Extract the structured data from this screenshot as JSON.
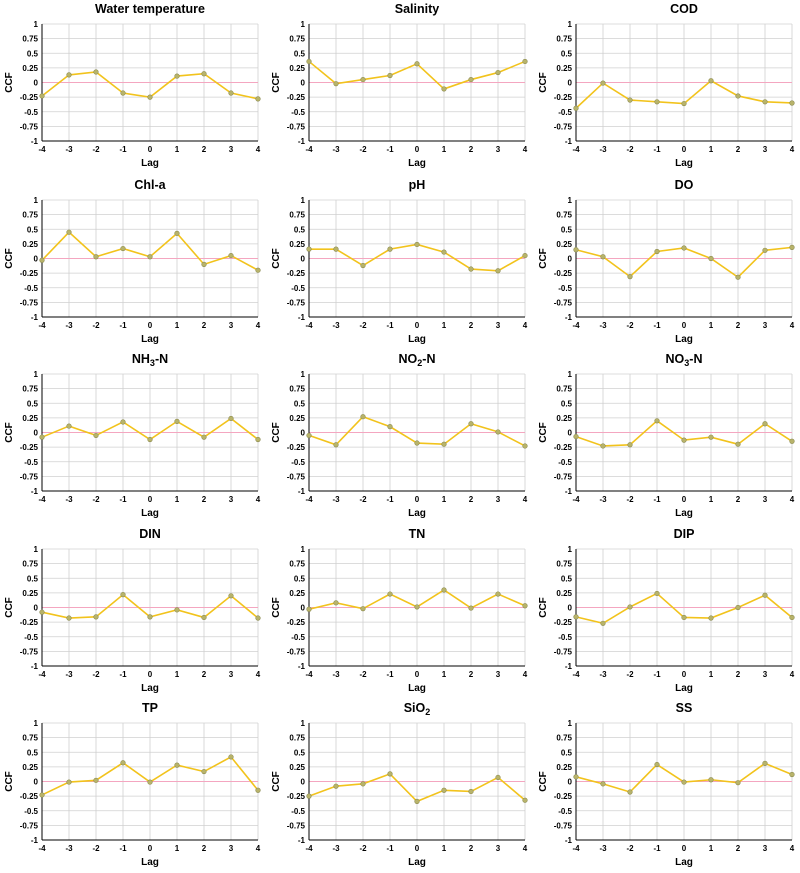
{
  "figure": {
    "colors": {
      "series": "#f2c31c",
      "marker_fill": "#b8b36a",
      "marker_edge": "#8a8a50",
      "zero_line": "#f4a6c0",
      "grid": "#d0d0d0",
      "axis": "#000000"
    }
  },
  "chart_data": [
    {
      "type": "line",
      "title": "Water temperature",
      "xlabel": "Lag",
      "ylabel": "CCF",
      "x": [
        -4,
        -3,
        -2,
        -1,
        0,
        1,
        2,
        3,
        4
      ],
      "xticks": [
        "-4",
        "-3",
        "-2",
        "-1",
        "0",
        "1",
        "2",
        "3",
        "4"
      ],
      "yticks": [
        "1",
        "0.75",
        "0.5",
        "0.25",
        "0",
        "-0.25",
        "-0.5",
        "-0.75",
        "-1"
      ],
      "ylim": [
        -1,
        1
      ],
      "values": [
        -0.23,
        0.13,
        0.18,
        -0.18,
        -0.25,
        0.11,
        0.15,
        -0.18,
        -0.28
      ]
    },
    {
      "type": "line",
      "title": "Salinity",
      "xlabel": "Lag",
      "ylabel": "CCF",
      "x": [
        -4,
        -3,
        -2,
        -1,
        0,
        1,
        2,
        3,
        4
      ],
      "xticks": [
        "-4",
        "-3",
        "-2",
        "-1",
        "0",
        "1",
        "2",
        "3",
        "4"
      ],
      "yticks": [
        "1",
        "0.75",
        "0.5",
        "0.25",
        "0",
        "-0.25",
        "-0.5",
        "-0.75",
        "-1"
      ],
      "ylim": [
        -1,
        1
      ],
      "values": [
        0.36,
        -0.02,
        0.05,
        0.12,
        0.32,
        -0.11,
        0.05,
        0.17,
        0.36
      ]
    },
    {
      "type": "line",
      "title": "COD",
      "xlabel": "Lag",
      "ylabel": "CCF",
      "x": [
        -4,
        -3,
        -2,
        -1,
        0,
        1,
        2,
        3,
        4
      ],
      "xticks": [
        "-4",
        "-3",
        "-2",
        "-1",
        "0",
        "1",
        "2",
        "3",
        "4"
      ],
      "yticks": [
        "1",
        "0.75",
        "0.5",
        "0.25",
        "0",
        "-0.25",
        "-0.5",
        "-0.75",
        "-1"
      ],
      "ylim": [
        -1,
        1
      ],
      "values": [
        -0.44,
        -0.01,
        -0.3,
        -0.33,
        -0.36,
        0.03,
        -0.23,
        -0.33,
        -0.35
      ]
    },
    {
      "type": "line",
      "title": "Chl-a",
      "xlabel": "Lag",
      "ylabel": "CCF",
      "x": [
        -4,
        -3,
        -2,
        -1,
        0,
        1,
        2,
        3,
        4
      ],
      "xticks": [
        "-4",
        "-3",
        "-2",
        "-1",
        "0",
        "1",
        "2",
        "3",
        "4"
      ],
      "yticks": [
        "1",
        "0.75",
        "0.5",
        "0.25",
        "0",
        "-0.25",
        "-0.5",
        "-0.75",
        "-1"
      ],
      "ylim": [
        -1,
        1
      ],
      "values": [
        -0.03,
        0.45,
        0.03,
        0.17,
        0.03,
        0.43,
        -0.1,
        0.05,
        -0.2
      ]
    },
    {
      "type": "line",
      "title": "pH",
      "xlabel": "Lag",
      "ylabel": "CCF",
      "x": [
        -4,
        -3,
        -2,
        -1,
        0,
        1,
        2,
        3,
        4
      ],
      "xticks": [
        "-4",
        "-3",
        "-2",
        "-1",
        "0",
        "1",
        "2",
        "3",
        "4"
      ],
      "yticks": [
        "1",
        "0.75",
        "0.5",
        "0.25",
        "0",
        "-0.25",
        "-0.5",
        "-0.75",
        "-1"
      ],
      "ylim": [
        -1,
        1
      ],
      "values": [
        0.16,
        0.16,
        -0.12,
        0.16,
        0.24,
        0.11,
        -0.18,
        -0.21,
        0.05
      ]
    },
    {
      "type": "line",
      "title": "DO",
      "xlabel": "Lag",
      "ylabel": "CCF",
      "x": [
        -4,
        -3,
        -2,
        -1,
        0,
        1,
        2,
        3,
        4
      ],
      "xticks": [
        "-4",
        "-3",
        "-2",
        "-1",
        "0",
        "1",
        "2",
        "3",
        "4"
      ],
      "yticks": [
        "1",
        "0.75",
        "0.5",
        "0.25",
        "0",
        "-0.25",
        "-0.5",
        "-0.75",
        "-1"
      ],
      "ylim": [
        -1,
        1
      ],
      "values": [
        0.15,
        0.03,
        -0.31,
        0.12,
        0.18,
        0.0,
        -0.32,
        0.14,
        0.19
      ]
    },
    {
      "type": "line",
      "title": "NH",
      "title_sub": "3",
      "title_suffix": "-N",
      "xlabel": "Lag",
      "ylabel": "CCF",
      "x": [
        -4,
        -3,
        -2,
        -1,
        0,
        1,
        2,
        3,
        4
      ],
      "xticks": [
        "-4",
        "-3",
        "-2",
        "-1",
        "0",
        "1",
        "2",
        "3",
        "4"
      ],
      "yticks": [
        "1",
        "0.75",
        "0.5",
        "0.25",
        "0",
        "-0.25",
        "-0.5",
        "-0.75",
        "-1"
      ],
      "ylim": [
        -1,
        1
      ],
      "values": [
        -0.08,
        0.11,
        -0.05,
        0.18,
        -0.12,
        0.19,
        -0.08,
        0.24,
        -0.12
      ]
    },
    {
      "type": "line",
      "title": "NO",
      "title_sub": "2",
      "title_suffix": "-N",
      "xlabel": "Lag",
      "ylabel": "CCF",
      "x": [
        -4,
        -3,
        -2,
        -1,
        0,
        1,
        2,
        3,
        4
      ],
      "xticks": [
        "-4",
        "-3",
        "-2",
        "-1",
        "0",
        "1",
        "2",
        "3",
        "4"
      ],
      "yticks": [
        "1",
        "0.75",
        "0.5",
        "0.25",
        "0",
        "-0.25",
        "-0.5",
        "-0.75",
        "-1"
      ],
      "ylim": [
        -1,
        1
      ],
      "values": [
        -0.05,
        -0.21,
        0.27,
        0.1,
        -0.18,
        -0.2,
        0.15,
        0.01,
        -0.23
      ]
    },
    {
      "type": "line",
      "title": "NO",
      "title_sub": "3",
      "title_suffix": "-N",
      "xlabel": "Lag",
      "ylabel": "CCF",
      "x": [
        -4,
        -3,
        -2,
        -1,
        0,
        1,
        2,
        3,
        4
      ],
      "xticks": [
        "-4",
        "-3",
        "-2",
        "-1",
        "0",
        "1",
        "2",
        "3",
        "4"
      ],
      "yticks": [
        "1",
        "0.75",
        "0.5",
        "0.25",
        "0",
        "-0.25",
        "-0.5",
        "-0.75",
        "-1"
      ],
      "ylim": [
        -1,
        1
      ],
      "values": [
        -0.07,
        -0.23,
        -0.21,
        0.2,
        -0.13,
        -0.08,
        -0.2,
        0.15,
        -0.15
      ]
    },
    {
      "type": "line",
      "title": "DIN",
      "xlabel": "Lag",
      "ylabel": "CCF",
      "x": [
        -4,
        -3,
        -2,
        -1,
        0,
        1,
        2,
        3,
        4
      ],
      "xticks": [
        "-4",
        "-3",
        "-2",
        "-1",
        "0",
        "1",
        "2",
        "3",
        "4"
      ],
      "yticks": [
        "1",
        "0.75",
        "0.5",
        "0.25",
        "0",
        "-0.25",
        "-0.5",
        "-0.75",
        "-1"
      ],
      "ylim": [
        -1,
        1
      ],
      "values": [
        -0.08,
        -0.18,
        -0.16,
        0.22,
        -0.16,
        -0.04,
        -0.17,
        0.2,
        -0.18
      ]
    },
    {
      "type": "line",
      "title": "TN",
      "xlabel": "Lag",
      "ylabel": "CCF",
      "x": [
        -4,
        -3,
        -2,
        -1,
        0,
        1,
        2,
        3,
        4
      ],
      "xticks": [
        "-4",
        "-3",
        "-2",
        "-1",
        "0",
        "1",
        "2",
        "3",
        "4"
      ],
      "yticks": [
        "1",
        "0.75",
        "0.5",
        "0.25",
        "0",
        "-0.25",
        "-0.5",
        "-0.75",
        "-1"
      ],
      "ylim": [
        -1,
        1
      ],
      "values": [
        -0.03,
        0.08,
        -0.02,
        0.23,
        0.01,
        0.3,
        -0.01,
        0.23,
        0.03
      ]
    },
    {
      "type": "line",
      "title": "DIP",
      "xlabel": "Lag",
      "ylabel": "CCF",
      "x": [
        -4,
        -3,
        -2,
        -1,
        0,
        1,
        2,
        3,
        4
      ],
      "xticks": [
        "-4",
        "-3",
        "-2",
        "-1",
        "0",
        "1",
        "2",
        "3",
        "4"
      ],
      "yticks": [
        "1",
        "0.75",
        "0.5",
        "0.25",
        "0",
        "-0.25",
        "-0.5",
        "-0.75",
        "-1"
      ],
      "ylim": [
        -1,
        1
      ],
      "values": [
        -0.16,
        -0.27,
        0.01,
        0.24,
        -0.17,
        -0.18,
        0.0,
        0.21,
        -0.17
      ]
    },
    {
      "type": "line",
      "title": "TP",
      "xlabel": "Lag",
      "ylabel": "CCF",
      "x": [
        -4,
        -3,
        -2,
        -1,
        0,
        1,
        2,
        3,
        4
      ],
      "xticks": [
        "-4",
        "-3",
        "-2",
        "-1",
        "0",
        "1",
        "2",
        "3",
        "4"
      ],
      "yticks": [
        "1",
        "0.75",
        "0.5",
        "0.25",
        "0",
        "-0.25",
        "-0.5",
        "-0.75",
        "-1"
      ],
      "ylim": [
        -1,
        1
      ],
      "values": [
        -0.23,
        -0.01,
        0.02,
        0.32,
        -0.01,
        0.28,
        0.17,
        0.42,
        -0.15
      ]
    },
    {
      "type": "line",
      "title": "SiO",
      "title_sub": "2",
      "title_suffix": "",
      "xlabel": "Lag",
      "ylabel": "CCF",
      "x": [
        -4,
        -3,
        -2,
        -1,
        0,
        1,
        2,
        3,
        4
      ],
      "xticks": [
        "-4",
        "-3",
        "-2",
        "-1",
        "0",
        "1",
        "2",
        "3",
        "4"
      ],
      "yticks": [
        "1",
        "0.75",
        "0.5",
        "0.25",
        "0",
        "-0.25",
        "-0.5",
        "-0.75",
        "-1"
      ],
      "ylim": [
        -1,
        1
      ],
      "values": [
        -0.25,
        -0.08,
        -0.04,
        0.13,
        -0.34,
        -0.15,
        -0.17,
        0.07,
        -0.32
      ]
    },
    {
      "type": "line",
      "title": "SS",
      "xlabel": "Lag",
      "ylabel": "CCF",
      "x": [
        -4,
        -3,
        -2,
        -1,
        0,
        1,
        2,
        3,
        4
      ],
      "xticks": [
        "-4",
        "-3",
        "-2",
        "-1",
        "0",
        "1",
        "2",
        "3",
        "4"
      ],
      "yticks": [
        "1",
        "0.75",
        "0.5",
        "0.25",
        "0",
        "-0.25",
        "-0.5",
        "-0.75",
        "-1"
      ],
      "ylim": [
        -1,
        1
      ],
      "values": [
        0.08,
        -0.04,
        -0.18,
        0.29,
        -0.01,
        0.03,
        -0.02,
        0.31,
        0.12
      ]
    }
  ]
}
